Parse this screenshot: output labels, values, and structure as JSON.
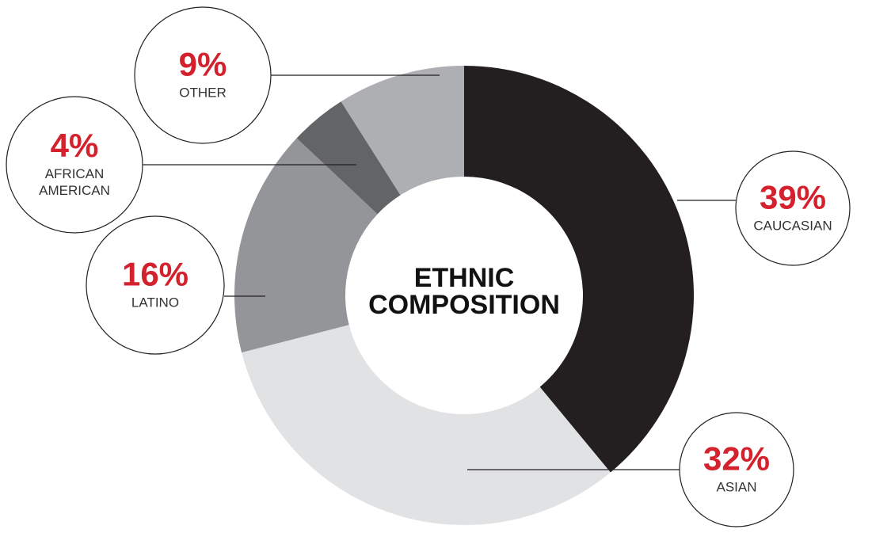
{
  "chart_data": {
    "type": "pie",
    "title": "ETHNIC COMPOSITION",
    "slices": [
      {
        "key": "caucasian",
        "value": 39,
        "pct_label": "39%",
        "label": [
          "CAUCASIAN"
        ],
        "color": "#231f20"
      },
      {
        "key": "asian",
        "value": 32,
        "pct_label": "32%",
        "label": [
          "ASIAN"
        ],
        "color": "#e1e2e4"
      },
      {
        "key": "latino",
        "value": 16,
        "pct_label": "16%",
        "label": [
          "LATINO"
        ],
        "color": "#939598"
      },
      {
        "key": "african-american",
        "value": 4,
        "pct_label": "4%",
        "label": [
          "AFRICAN",
          "AMERICAN"
        ],
        "color": "#636466"
      },
      {
        "key": "other",
        "value": 9,
        "pct_label": "9%",
        "label": [
          "OTHER"
        ],
        "color": "#aeafb2"
      }
    ]
  },
  "colors": {
    "accent": "#d3222e",
    "callout_border": "#231f20"
  }
}
